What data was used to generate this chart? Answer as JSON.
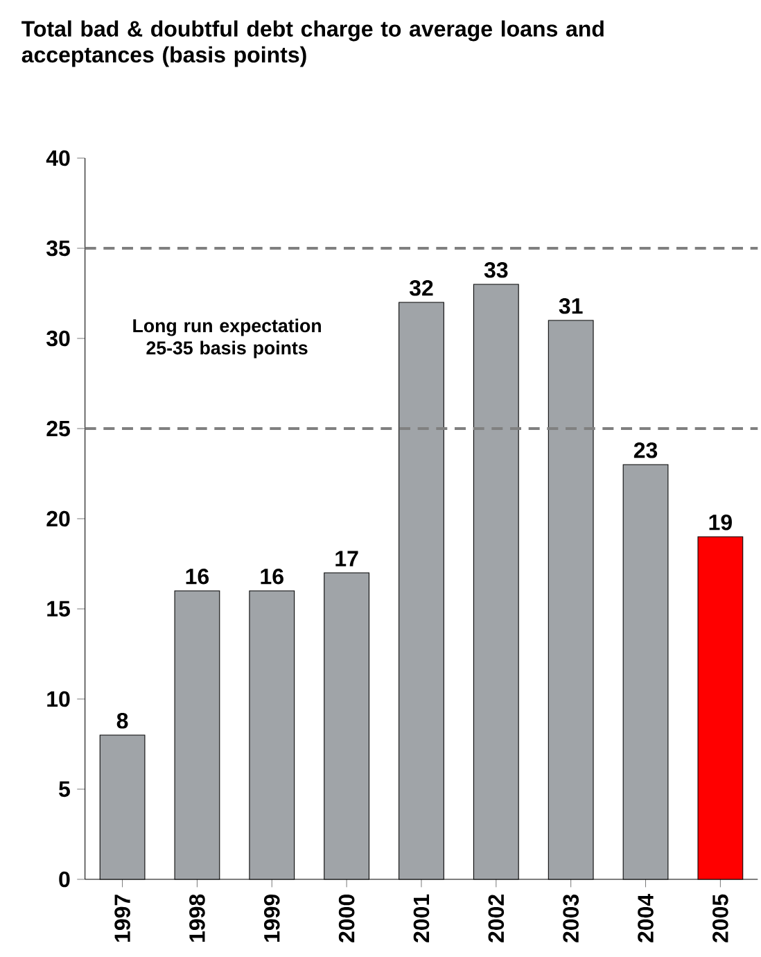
{
  "chart_data": {
    "type": "bar",
    "title": "Total bad & doubtful debt charge to average loans and acceptances (basis points)",
    "categories": [
      "1997",
      "1998",
      "1999",
      "2000",
      "2001",
      "2002",
      "2003",
      "2004",
      "2005"
    ],
    "values": [
      8,
      16,
      16,
      17,
      32,
      33,
      31,
      23,
      19
    ],
    "colors": [
      "#a0a4a8",
      "#a0a4a8",
      "#a0a4a8",
      "#a0a4a8",
      "#a0a4a8",
      "#a0a4a8",
      "#a0a4a8",
      "#a0a4a8",
      "#ff0000"
    ],
    "ylim": [
      0,
      40
    ],
    "yticks": [
      0,
      5,
      10,
      15,
      20,
      25,
      30,
      35,
      40
    ],
    "data_labels": true,
    "grid": false,
    "ref_lines": [
      {
        "axis": "y",
        "value": 35,
        "color": "#808080",
        "line_style": "dashed"
      },
      {
        "axis": "y",
        "value": 25,
        "color": "#808080",
        "line_style": "dashed"
      }
    ],
    "annotations": [
      "Long run expectation 25-35 basis points"
    ]
  }
}
